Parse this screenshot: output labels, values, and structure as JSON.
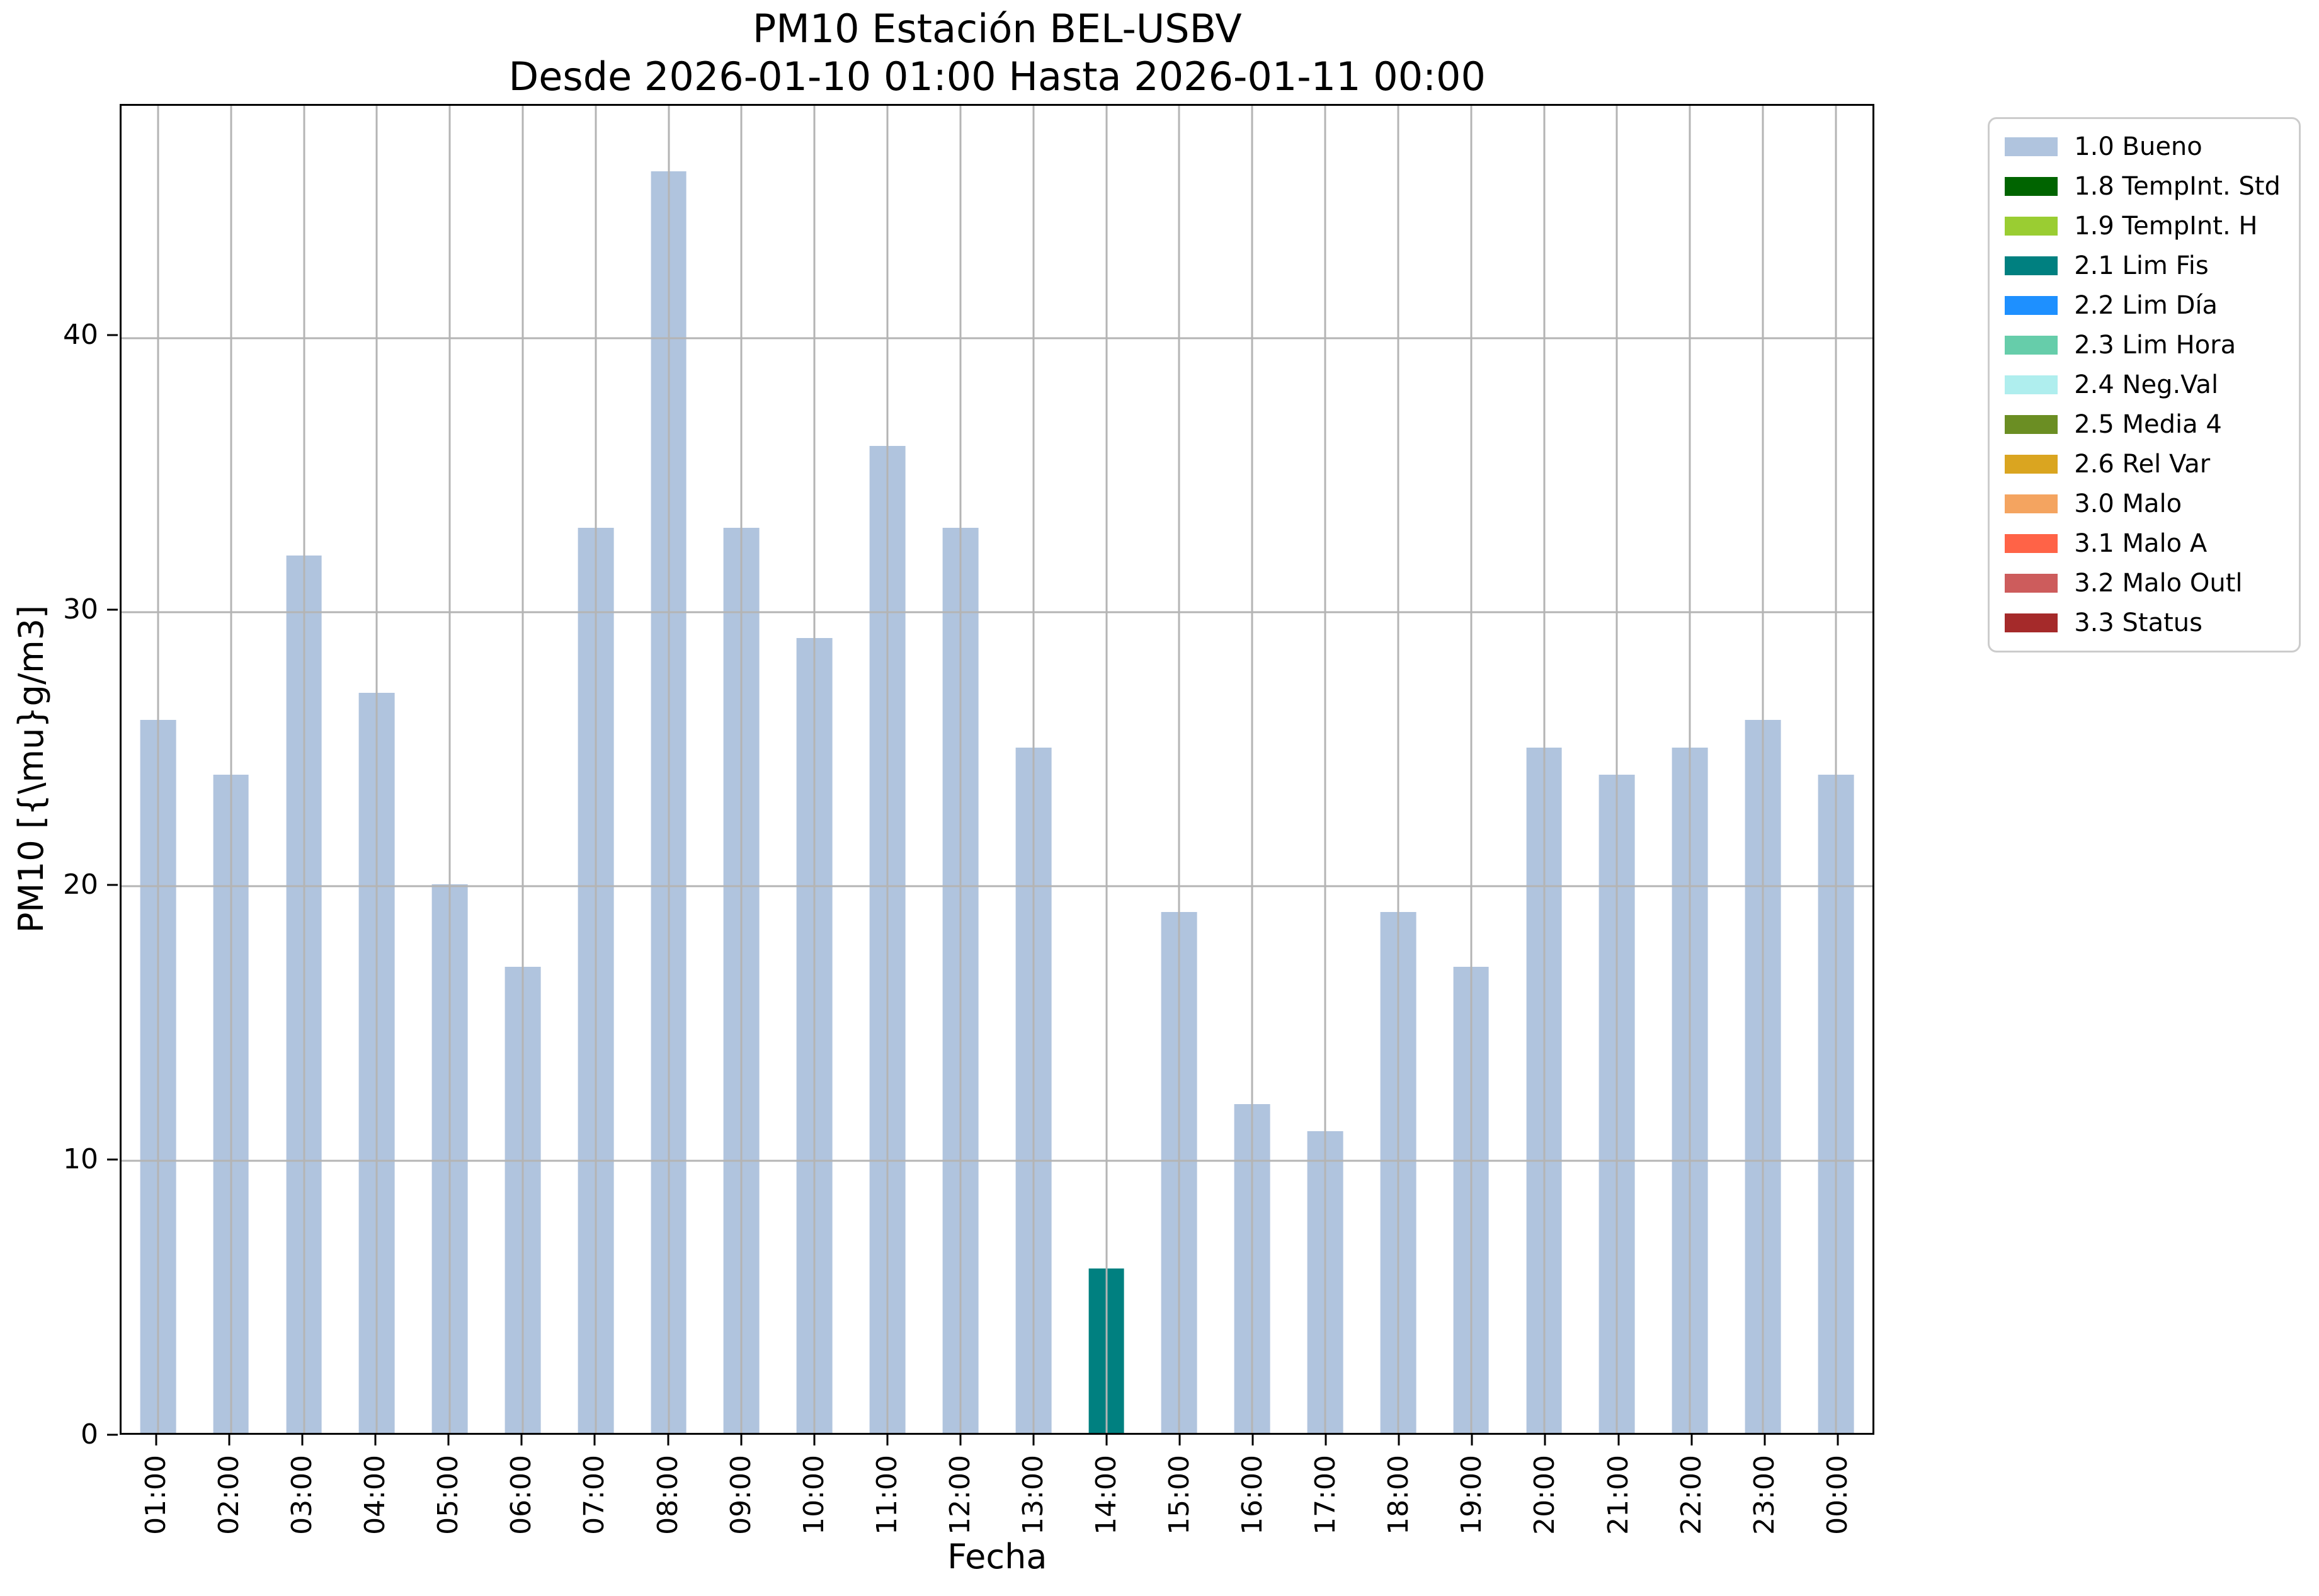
{
  "figure": {
    "title": "PM10 Estación BEL-USBV",
    "subtitle": "Desde 2026-01-10 01:00 Hasta 2026-01-11 00:00"
  },
  "chart_data": {
    "type": "bar",
    "title": "PM10 Estación BEL-USBV",
    "subtitle": "Desde 2026-01-10 01:00 Hasta 2026-01-11 00:00",
    "xlabel": "Fecha",
    "ylabel": "PM10 [{\\mu}g/m3]",
    "categories": [
      "01:00",
      "02:00",
      "03:00",
      "04:00",
      "05:00",
      "06:00",
      "07:00",
      "08:00",
      "09:00",
      "10:00",
      "11:00",
      "12:00",
      "13:00",
      "14:00",
      "15:00",
      "16:00",
      "17:00",
      "18:00",
      "19:00",
      "20:00",
      "21:00",
      "22:00",
      "23:00",
      "00:00"
    ],
    "values": [
      26,
      24,
      32,
      27,
      20,
      17,
      33,
      46,
      33,
      29,
      36,
      33,
      25,
      6,
      19,
      12,
      11,
      19,
      17,
      25,
      24,
      25,
      26,
      24
    ],
    "point_flags": [
      "1.0 Bueno",
      "1.0 Bueno",
      "1.0 Bueno",
      "1.0 Bueno",
      "1.0 Bueno",
      "1.0 Bueno",
      "1.0 Bueno",
      "1.0 Bueno",
      "1.0 Bueno",
      "1.0 Bueno",
      "1.0 Bueno",
      "1.0 Bueno",
      "1.0 Bueno",
      "2.1 Lim Fis",
      "1.0 Bueno",
      "1.0 Bueno",
      "1.0 Bueno",
      "1.0 Bueno",
      "1.0 Bueno",
      "1.0 Bueno",
      "1.0 Bueno",
      "1.0 Bueno",
      "1.0 Bueno",
      "1.0 Bueno"
    ],
    "yticks": [
      0,
      10,
      20,
      30,
      40
    ],
    "ylim": [
      0,
      48.4
    ],
    "grid": true,
    "grid_color": "#b4b4b4",
    "legend_position": "outside-right",
    "legend": [
      {
        "label": "1.0 Bueno",
        "color": "#B0C4DE"
      },
      {
        "label": "1.8 TempInt. Std",
        "color": "#006400"
      },
      {
        "label": "1.9 TempInt. H",
        "color": "#9ACD32"
      },
      {
        "label": "2.1 Lim Fis",
        "color": "#008080"
      },
      {
        "label": "2.2 Lim Día",
        "color": "#1E90FF"
      },
      {
        "label": "2.3 Lim Hora",
        "color": "#66CDAA"
      },
      {
        "label": "2.4 Neg.Val",
        "color": "#AFEEEE"
      },
      {
        "label": "2.5 Media 4",
        "color": "#6B8E23"
      },
      {
        "label": "2.6 Rel Var",
        "color": "#DAA520"
      },
      {
        "label": "3.0 Malo",
        "color": "#F4A460"
      },
      {
        "label": "3.1 Malo A",
        "color": "#FF6347"
      },
      {
        "label": "3.2 Malo Outl",
        "color": "#CD5C5C"
      },
      {
        "label": "3.3 Status",
        "color": "#A52A2A"
      }
    ]
  }
}
